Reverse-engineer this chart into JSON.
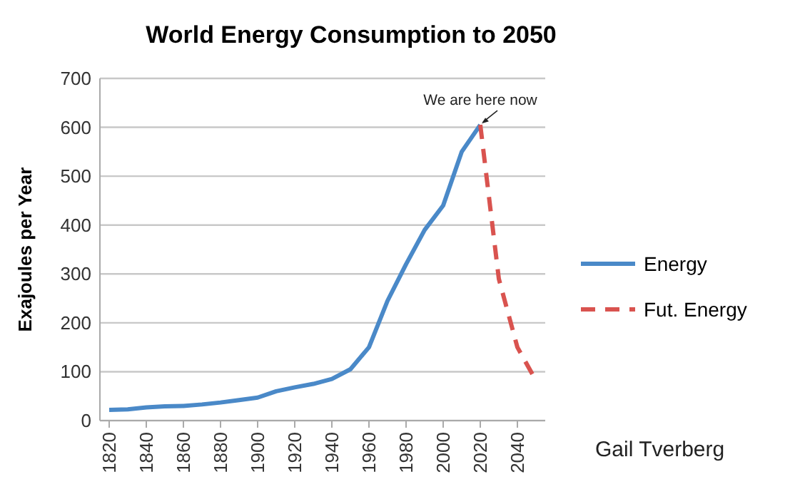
{
  "chart_data": {
    "type": "line",
    "title": "World Energy Consumption to 2050",
    "ylabel": "Exajoules per Year",
    "xlim": [
      1815,
      2055
    ],
    "xticks": [
      1820,
      1840,
      1860,
      1880,
      1900,
      1920,
      1940,
      1960,
      1980,
      2000,
      2020,
      2040
    ],
    "ylim": [
      0,
      700
    ],
    "yticks": [
      0,
      100,
      200,
      300,
      400,
      500,
      600,
      700
    ],
    "grid": "y",
    "legend": "right",
    "series": [
      {
        "name": "Energy",
        "color": "#4a89c8",
        "line_style": "solid",
        "x": [
          1820,
          1830,
          1840,
          1850,
          1860,
          1870,
          1880,
          1890,
          1900,
          1910,
          1920,
          1930,
          1940,
          1950,
          1960,
          1970,
          1980,
          1990,
          2000,
          2010,
          2020
        ],
        "values": [
          22,
          23,
          27,
          29,
          30,
          33,
          37,
          42,
          47,
          60,
          68,
          75,
          85,
          105,
          150,
          245,
          320,
          390,
          440,
          550,
          605
        ]
      },
      {
        "name": "Fut. Energy",
        "color": "#d9534f",
        "line_style": "dashed",
        "x": [
          2020,
          2030,
          2040,
          2050
        ],
        "values": [
          605,
          290,
          150,
          82
        ]
      }
    ],
    "annotations": [
      {
        "text": "We are here now",
        "x": 2020,
        "y": 605
      },
      "Gail Tverberg"
    ]
  }
}
